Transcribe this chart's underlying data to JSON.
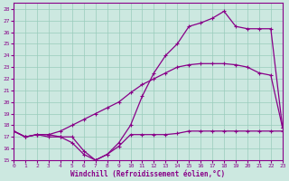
{
  "xlabel": "Windchill (Refroidissement éolien,°C)",
  "bg_color": "#cce8e0",
  "line_color": "#880088",
  "grid_color": "#99ccbb",
  "xlim": [
    0,
    23
  ],
  "ylim": [
    15,
    28.5
  ],
  "yticks": [
    15,
    16,
    17,
    18,
    19,
    20,
    21,
    22,
    23,
    24,
    25,
    26,
    27,
    28
  ],
  "xticks": [
    0,
    1,
    2,
    3,
    4,
    5,
    6,
    7,
    8,
    9,
    10,
    11,
    12,
    13,
    14,
    15,
    16,
    17,
    18,
    19,
    20,
    21,
    22,
    23
  ],
  "line1_x": [
    0,
    1,
    2,
    3,
    4,
    5,
    6,
    7,
    8,
    9,
    10,
    11,
    12,
    13,
    14,
    15,
    16,
    17,
    18,
    19,
    20,
    21,
    22,
    23
  ],
  "line1_y": [
    17.5,
    17.0,
    17.2,
    17.0,
    17.0,
    17.0,
    15.8,
    15.0,
    15.5,
    16.2,
    17.2,
    17.2,
    17.2,
    17.2,
    17.3,
    17.5,
    17.5,
    17.5,
    17.5,
    17.5,
    17.5,
    17.5,
    17.5,
    17.5
  ],
  "line2_x": [
    0,
    1,
    2,
    3,
    4,
    5,
    6,
    7,
    8,
    9,
    10,
    11,
    12,
    13,
    14,
    15,
    16,
    17,
    18,
    19,
    20,
    21,
    22,
    23
  ],
  "line2_y": [
    17.5,
    17.0,
    17.2,
    17.2,
    17.5,
    18.0,
    18.5,
    19.0,
    19.5,
    20.0,
    20.8,
    21.5,
    22.0,
    22.5,
    23.0,
    23.2,
    23.3,
    23.3,
    23.3,
    23.2,
    23.0,
    22.5,
    22.3,
    17.8
  ],
  "line3_x": [
    0,
    1,
    2,
    3,
    4,
    5,
    6,
    7,
    8,
    9,
    10,
    11,
    12,
    13,
    14,
    15,
    16,
    17,
    18,
    19,
    20,
    21,
    22,
    23
  ],
  "line3_y": [
    17.5,
    17.0,
    17.2,
    17.2,
    17.0,
    16.5,
    15.5,
    15.0,
    15.5,
    16.5,
    18.0,
    20.5,
    22.5,
    24.0,
    25.0,
    26.5,
    26.8,
    27.2,
    27.8,
    26.5,
    26.3,
    26.3,
    26.3,
    17.8
  ]
}
